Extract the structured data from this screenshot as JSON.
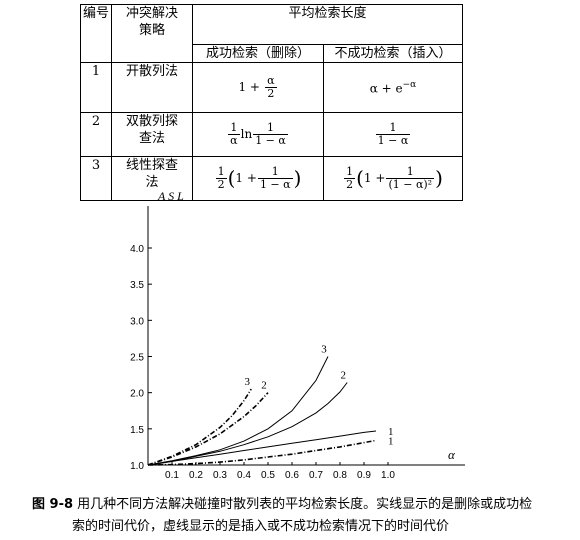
{
  "table": {
    "header": {
      "no": "编号",
      "strategy": "冲突解决策略",
      "asl_group": "平均检索长度",
      "success": "成功检索（删除）",
      "fail": "不成功检索（插入）"
    },
    "rows": [
      {
        "no": "1",
        "strategy": "开散列法",
        "success": {
          "a": "1 +",
          "num": "α",
          "den": "2"
        },
        "fail": {
          "a": "α + e",
          "sup": "−α"
        }
      },
      {
        "no": "2",
        "strategy": "双散列探查法",
        "success": {
          "num1": "1",
          "den1": "α",
          "mid": "ln",
          "num2": "1",
          "den2": "1 − α"
        },
        "fail": {
          "num": "1",
          "den": "1 − α"
        }
      },
      {
        "no": "3",
        "strategy": "线性探查法",
        "success": {
          "half_num": "1",
          "half_den": "2",
          "one": "1 +",
          "num": "1",
          "den": "1 − α"
        },
        "fail": {
          "half_num": "1",
          "half_den": "2",
          "one": "1 +",
          "num": "1",
          "den": "(1 − α)²"
        }
      }
    ]
  },
  "chart_data": {
    "type": "line",
    "ylabel": "A S L",
    "xlabel": "α",
    "x_ticks": [
      "0.1",
      "0.2",
      "0.3",
      "0.4",
      "0.5",
      "0.6",
      "0.7",
      "0.8",
      "0.9",
      "1.0"
    ],
    "y_ticks": [
      "1.0",
      "1.5",
      "2.0",
      "2.5",
      "3.0",
      "3.5",
      "4.0"
    ],
    "xlim": [
      0,
      1.0
    ],
    "ylim": [
      1.0,
      4.0
    ],
    "series": [
      {
        "name": "1",
        "style": "solid",
        "x": [
          0,
          0.1,
          0.2,
          0.3,
          0.4,
          0.5,
          0.6,
          0.7,
          0.8,
          0.9,
          0.95
        ],
        "y": [
          1,
          1.05,
          1.1,
          1.15,
          1.2,
          1.25,
          1.3,
          1.35,
          1.4,
          1.45,
          1.47
        ]
      },
      {
        "name": "1",
        "style": "dashed",
        "x": [
          0,
          0.1,
          0.2,
          0.3,
          0.4,
          0.5,
          0.6,
          0.7,
          0.8,
          0.9,
          0.95
        ],
        "y": [
          1,
          1.005,
          1.02,
          1.04,
          1.07,
          1.11,
          1.15,
          1.2,
          1.25,
          1.31,
          1.34
        ]
      },
      {
        "name": "2",
        "style": "solid",
        "x": [
          0.01,
          0.1,
          0.2,
          0.3,
          0.4,
          0.5,
          0.6,
          0.7,
          0.75,
          0.8,
          0.83
        ],
        "y": [
          1,
          1.05,
          1.12,
          1.19,
          1.28,
          1.39,
          1.53,
          1.72,
          1.85,
          2.01,
          2.14
        ]
      },
      {
        "name": "3",
        "style": "solid",
        "x": [
          0,
          0.1,
          0.2,
          0.3,
          0.4,
          0.5,
          0.6,
          0.7,
          0.75
        ],
        "y": [
          1,
          1.06,
          1.13,
          1.21,
          1.33,
          1.5,
          1.75,
          2.17,
          2.5
        ]
      },
      {
        "name": "2",
        "style": "dashed",
        "x": [
          0,
          0.1,
          0.2,
          0.3,
          0.4,
          0.45,
          0.5
        ],
        "y": [
          1,
          1.11,
          1.25,
          1.43,
          1.67,
          1.82,
          2.0
        ]
      },
      {
        "name": "3",
        "style": "dashed",
        "x": [
          0,
          0.1,
          0.2,
          0.3,
          0.35,
          0.4,
          0.43
        ],
        "y": [
          1,
          1.12,
          1.28,
          1.52,
          1.68,
          1.89,
          2.05
        ]
      }
    ]
  },
  "caption": {
    "number": "图 9-8",
    "line1": "用几种不同方法解决碰撞时散列表的平均检索长度。实线显示的是删除或成功检",
    "line2": "索的时间代价，虚线显示的是插入或不成功检索情况下的时间代价"
  }
}
